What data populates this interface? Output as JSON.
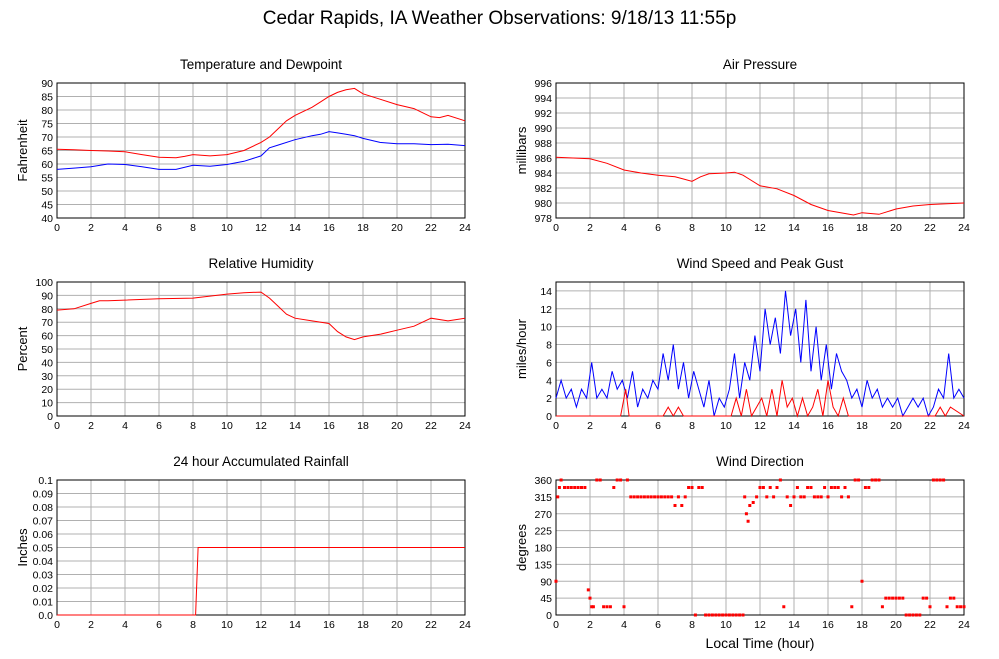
{
  "page": {
    "title": "Cedar Rapids, IA Weather Observations: 9/18/13 11:55p",
    "xlabel": "Local Time (hour)"
  },
  "colors": {
    "red": "#ff0000",
    "blue": "#0000ff",
    "grid": "#b0b0b0"
  },
  "chart_data": [
    {
      "type": "line",
      "title": "Temperature and Dewpoint",
      "ylabel": "Fahrenheit",
      "xlim": [
        0,
        24
      ],
      "ylim": [
        40,
        90
      ],
      "xticks": [
        0,
        2,
        4,
        6,
        8,
        10,
        12,
        14,
        16,
        18,
        20,
        22,
        24
      ],
      "yticks": [
        40,
        45,
        50,
        55,
        60,
        65,
        70,
        75,
        80,
        85,
        90
      ],
      "grid": true,
      "series": [
        {
          "color": "#ff0000",
          "x": [
            0,
            1,
            2,
            3,
            4,
            5,
            6,
            7,
            7.5,
            8,
            9,
            10,
            11,
            12,
            12.5,
            13,
            13.5,
            14,
            15,
            15.5,
            16,
            16.5,
            17,
            17.5,
            18,
            19,
            20,
            21,
            21.5,
            22,
            22.5,
            23,
            24
          ],
          "y": [
            65.5,
            65.3,
            65,
            64.8,
            64.5,
            63.5,
            62.5,
            62.3,
            62.8,
            63.5,
            63,
            63.5,
            65,
            68,
            70,
            73,
            76,
            78,
            81,
            83,
            85,
            86.5,
            87.5,
            88,
            86,
            84,
            82,
            80.5,
            79,
            77.5,
            77.2,
            78,
            76
          ]
        },
        {
          "color": "#0000ff",
          "x": [
            0,
            1,
            2,
            3,
            4,
            5,
            6,
            7,
            8,
            9,
            10,
            11,
            12,
            12.5,
            13,
            14,
            15,
            15.5,
            16,
            16.5,
            17,
            17.5,
            18,
            19,
            20,
            21,
            22,
            23,
            24
          ],
          "y": [
            58,
            58.5,
            59,
            60,
            59.8,
            59,
            58,
            58,
            59.5,
            59.2,
            59.8,
            61,
            63,
            66,
            67,
            69,
            70.5,
            71,
            72,
            71.5,
            71,
            70.5,
            69.5,
            68,
            67.5,
            67.5,
            67.2,
            67.3,
            66.8
          ]
        }
      ]
    },
    {
      "type": "line",
      "title": "Air Pressure",
      "ylabel": "millibars",
      "xlim": [
        0,
        24
      ],
      "ylim": [
        978,
        996
      ],
      "xticks": [
        0,
        2,
        4,
        6,
        8,
        10,
        12,
        14,
        16,
        18,
        20,
        22,
        24
      ],
      "yticks": [
        978,
        980,
        982,
        984,
        986,
        988,
        990,
        992,
        994,
        996
      ],
      "grid": true,
      "series": [
        {
          "color": "#ff0000",
          "x": [
            0,
            1,
            2,
            3,
            4,
            5,
            6,
            7,
            7.5,
            8,
            8.5,
            9,
            10,
            10.5,
            11,
            11.5,
            12,
            13,
            14,
            15,
            16,
            17,
            17.5,
            18,
            19,
            20,
            21,
            22,
            23,
            24
          ],
          "y": [
            986.1,
            986,
            985.9,
            985.3,
            984.4,
            984,
            983.7,
            983.5,
            983.2,
            982.9,
            983.5,
            983.9,
            984,
            984.1,
            983.7,
            983,
            982.3,
            981.9,
            981,
            979.8,
            979,
            978.6,
            978.4,
            978.7,
            978.5,
            979.2,
            979.6,
            979.8,
            979.9,
            980
          ]
        }
      ]
    },
    {
      "type": "line",
      "title": "Relative Humidity",
      "ylabel": "Percent",
      "xlim": [
        0,
        24
      ],
      "ylim": [
        0,
        100
      ],
      "xticks": [
        0,
        2,
        4,
        6,
        8,
        10,
        12,
        14,
        16,
        18,
        20,
        22,
        24
      ],
      "yticks": [
        0,
        10,
        20,
        30,
        40,
        50,
        60,
        70,
        80,
        90,
        100
      ],
      "grid": true,
      "series": [
        {
          "color": "#ff0000",
          "x": [
            0,
            1,
            2,
            2.5,
            3,
            4,
            6,
            8,
            9,
            10,
            11,
            12,
            12.5,
            13,
            13.5,
            14,
            15,
            16,
            16.5,
            17,
            17.5,
            18,
            19,
            20,
            21,
            22,
            23,
            24
          ],
          "y": [
            79,
            80,
            84,
            86,
            86,
            86.5,
            87.5,
            88,
            89.5,
            91,
            92,
            92.5,
            88,
            82,
            76,
            73,
            71,
            69,
            63,
            59,
            57,
            59,
            61,
            64,
            67,
            73,
            71,
            73
          ]
        }
      ]
    },
    {
      "type": "line",
      "title": "Wind Speed and Peak Gust",
      "ylabel": "miles/hour",
      "xlim": [
        0,
        24
      ],
      "ylim": [
        0,
        15
      ],
      "xticks": [
        0,
        2,
        4,
        6,
        8,
        10,
        12,
        14,
        16,
        18,
        20,
        22,
        24
      ],
      "yticks": [
        0,
        2,
        4,
        6,
        8,
        10,
        12,
        14
      ],
      "grid": true,
      "series": [
        {
          "color": "#0000ff",
          "x": [
            0,
            0.3,
            0.6,
            0.9,
            1.2,
            1.5,
            1.8,
            2.1,
            2.4,
            2.7,
            3,
            3.3,
            3.6,
            3.9,
            4.2,
            4.5,
            4.8,
            5.1,
            5.4,
            5.7,
            6,
            6.3,
            6.6,
            6.9,
            7.2,
            7.5,
            7.8,
            8.1,
            8.4,
            8.7,
            9,
            9.3,
            9.6,
            9.9,
            10.2,
            10.5,
            10.8,
            11.1,
            11.4,
            11.7,
            12,
            12.3,
            12.6,
            12.9,
            13.2,
            13.5,
            13.8,
            14.1,
            14.4,
            14.7,
            15,
            15.3,
            15.6,
            15.9,
            16.2,
            16.5,
            16.8,
            17.1,
            17.4,
            17.7,
            18,
            18.3,
            18.6,
            18.9,
            19.2,
            19.5,
            19.8,
            20.1,
            20.4,
            20.7,
            21,
            21.3,
            21.6,
            21.9,
            22.2,
            22.5,
            22.8,
            23.1,
            23.4,
            23.7,
            24
          ],
          "y": [
            2,
            4,
            2,
            3,
            1,
            3,
            2,
            6,
            2,
            3,
            2,
            5,
            3,
            4,
            2,
            5,
            1,
            3,
            2,
            4,
            3,
            7,
            4,
            8,
            3,
            6,
            2,
            5,
            3,
            1,
            4,
            0,
            2,
            1,
            3,
            7,
            2,
            6,
            4,
            9,
            5,
            12,
            8,
            11,
            7,
            14,
            9,
            12,
            6,
            13,
            5,
            10,
            4,
            8,
            3,
            7,
            5,
            4,
            2,
            3,
            1,
            4,
            2,
            3,
            1,
            2,
            1,
            2,
            0,
            1,
            2,
            1,
            2,
            0,
            1,
            3,
            2,
            7,
            2,
            3,
            2
          ]
        },
        {
          "color": "#ff0000",
          "x": [
            0,
            3.8,
            4.1,
            4.3,
            6.3,
            6.6,
            6.9,
            7.2,
            7.5,
            10.3,
            10.6,
            10.9,
            11.2,
            11.5,
            11.8,
            12.1,
            12.4,
            12.7,
            13,
            13.3,
            13.6,
            13.9,
            14.2,
            14.5,
            14.8,
            15.1,
            15.4,
            15.7,
            16,
            16.3,
            16.6,
            16.9,
            17.2,
            22.3,
            22.6,
            22.9,
            23.2,
            24
          ],
          "y": [
            0,
            0,
            3,
            0,
            0,
            1,
            0,
            1,
            0,
            0,
            2,
            0,
            3,
            0,
            1,
            2,
            0,
            3,
            0,
            4,
            1,
            2,
            0,
            2,
            0,
            1,
            3,
            0,
            4,
            1,
            0,
            2,
            0,
            0,
            1,
            0,
            1,
            0
          ]
        }
      ]
    },
    {
      "type": "line",
      "title": "24 hour Accumulated Rainfall",
      "ylabel": "Inches",
      "xlim": [
        0,
        24
      ],
      "ylim": [
        0,
        0.1
      ],
      "xticks": [
        0,
        2,
        4,
        6,
        8,
        10,
        12,
        14,
        16,
        18,
        20,
        22,
        24
      ],
      "yticks": [
        "0.0",
        "0.01",
        "0.02",
        "0.03",
        "0.04",
        "0.05",
        "0.06",
        "0.07",
        "0.08",
        "0.09",
        "0.1"
      ],
      "grid": true,
      "series": [
        {
          "color": "#ff0000",
          "x": [
            0,
            8.15,
            8.3,
            24
          ],
          "y": [
            0,
            0,
            0.05,
            0.05
          ]
        }
      ]
    },
    {
      "type": "scatter",
      "title": "Wind Direction",
      "ylabel": "degrees",
      "xlim": [
        0,
        24
      ],
      "ylim": [
        0,
        360
      ],
      "xticks": [
        0,
        2,
        4,
        6,
        8,
        10,
        12,
        14,
        16,
        18,
        20,
        22,
        24
      ],
      "yticks": [
        0,
        45,
        90,
        135,
        180,
        225,
        270,
        315,
        360
      ],
      "grid": true,
      "series": [
        {
          "color": "#ff0000",
          "x": [
            0,
            0.1,
            0.2,
            0.3,
            0.5,
            0.7,
            0.9,
            1.1,
            1.3,
            1.5,
            1.7,
            1.9,
            2.0,
            2.1,
            2.2,
            2.4,
            2.6,
            2.8,
            3.0,
            3.2,
            3.4,
            3.6,
            3.8,
            4.0,
            4.2,
            4.4,
            4.6,
            4.8,
            5.0,
            5.2,
            5.4,
            5.6,
            5.8,
            6.0,
            6.2,
            6.4,
            6.6,
            6.8,
            7.0,
            7.2,
            7.4,
            7.6,
            7.8,
            8.0,
            8.2,
            8.4,
            8.6,
            8.8,
            9.0,
            9.2,
            9.4,
            9.6,
            9.8,
            10.0,
            10.2,
            10.4,
            10.6,
            10.8,
            11.0,
            11.1,
            11.2,
            11.3,
            11.4,
            11.6,
            11.8,
            12.0,
            12.2,
            12.4,
            12.6,
            12.8,
            13.0,
            13.2,
            13.4,
            13.6,
            13.8,
            14.0,
            14.2,
            14.4,
            14.6,
            14.8,
            15.0,
            15.2,
            15.4,
            15.6,
            15.8,
            16.0,
            16.2,
            16.4,
            16.6,
            16.8,
            17.0,
            17.2,
            17.4,
            17.6,
            17.8,
            18.0,
            18.2,
            18.4,
            18.6,
            18.8,
            19.0,
            19.2,
            19.4,
            19.6,
            19.8,
            20.0,
            20.2,
            20.4,
            20.6,
            20.8,
            21.0,
            21.2,
            21.4,
            21.6,
            21.8,
            22.0,
            22.2,
            22.4,
            22.6,
            22.8,
            23.0,
            23.2,
            23.4,
            23.6,
            23.8,
            24
          ],
          "y": [
            90,
            315,
            340,
            360,
            340,
            340,
            340,
            340,
            340,
            340,
            340,
            67,
            45,
            22,
            22,
            360,
            360,
            22,
            22,
            22,
            340,
            360,
            360,
            22,
            360,
            315,
            315,
            315,
            315,
            315,
            315,
            315,
            315,
            315,
            315,
            315,
            315,
            315,
            292,
            315,
            292,
            315,
            340,
            340,
            0,
            340,
            340,
            0,
            0,
            0,
            0,
            0,
            0,
            0,
            0,
            0,
            0,
            0,
            0,
            315,
            270,
            250,
            292,
            300,
            315,
            340,
            340,
            315,
            340,
            315,
            340,
            360,
            22,
            315,
            292,
            315,
            340,
            315,
            315,
            340,
            340,
            315,
            315,
            315,
            340,
            315,
            340,
            340,
            340,
            315,
            340,
            315,
            22,
            360,
            360,
            90,
            340,
            340,
            360,
            360,
            360,
            22,
            45,
            45,
            45,
            45,
            45,
            45,
            0,
            0,
            0,
            0,
            0,
            45,
            45,
            22,
            360,
            360,
            360,
            360,
            22,
            45,
            45,
            22,
            22,
            22
          ]
        }
      ]
    }
  ]
}
